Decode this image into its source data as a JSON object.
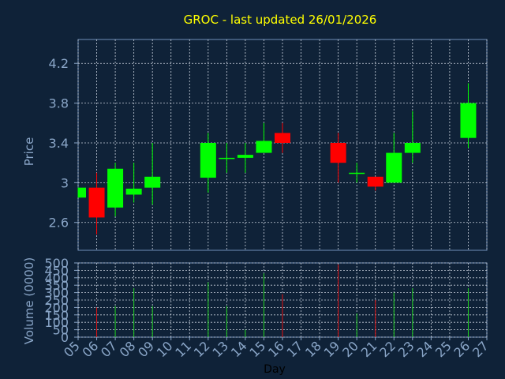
{
  "chart_data": [
    {
      "type": "candlestick",
      "title": "GROC - last updated 26/01/2026",
      "ylabel": "Price",
      "ylim": [
        2.32,
        4.44
      ],
      "yticks": [
        "2.6",
        "3",
        "3.4",
        "3.8",
        "4.2"
      ],
      "ytick_values": [
        2.6,
        3.0,
        3.4,
        3.8,
        4.2
      ],
      "grid": true,
      "candles": [
        {
          "day": "05",
          "open": 2.85,
          "close": 2.95,
          "high": 2.95,
          "low": 2.85
        },
        {
          "day": "06",
          "open": 2.95,
          "close": 2.65,
          "high": 3.1,
          "low": 2.48
        },
        {
          "day": "07",
          "open": 2.75,
          "close": 3.14,
          "high": 3.2,
          "low": 2.66
        },
        {
          "day": "08",
          "open": 2.88,
          "close": 2.94,
          "high": 3.2,
          "low": 2.8
        },
        {
          "day": "09",
          "open": 2.95,
          "close": 3.06,
          "high": 3.4,
          "low": 2.78
        },
        {
          "day": "12",
          "open": 3.05,
          "close": 3.4,
          "high": 3.5,
          "low": 2.9
        },
        {
          "day": "13",
          "open": 3.24,
          "close": 3.25,
          "high": 3.4,
          "low": 3.1
        },
        {
          "day": "14",
          "open": 3.25,
          "close": 3.28,
          "high": 3.4,
          "low": 3.1
        },
        {
          "day": "15",
          "open": 3.3,
          "close": 3.42,
          "high": 3.6,
          "low": 3.3
        },
        {
          "day": "16",
          "open": 3.5,
          "close": 3.4,
          "high": 3.6,
          "low": 3.3
        },
        {
          "day": "19",
          "open": 3.4,
          "close": 3.2,
          "high": 3.5,
          "low": 3.0
        },
        {
          "day": "20",
          "open": 3.09,
          "close": 3.1,
          "high": 3.2,
          "low": 3.0
        },
        {
          "day": "21",
          "open": 3.06,
          "close": 2.96,
          "high": 3.06,
          "low": 2.92
        },
        {
          "day": "22",
          "open": 3.0,
          "close": 3.3,
          "high": 3.5,
          "low": 3.0
        },
        {
          "day": "23",
          "open": 3.3,
          "close": 3.4,
          "high": 3.72,
          "low": 3.2
        },
        {
          "day": "26",
          "open": 3.45,
          "close": 3.8,
          "high": 4.0,
          "low": 3.35
        }
      ]
    },
    {
      "type": "bar",
      "ylabel": "Volume (0000)",
      "xlabel": "Day",
      "ylim": [
        0,
        500
      ],
      "yticks": [
        "0",
        "50",
        "100",
        "150",
        "200",
        "250",
        "300",
        "350",
        "400",
        "450",
        "500"
      ],
      "ytick_values": [
        0,
        50,
        100,
        150,
        200,
        250,
        300,
        350,
        400,
        450,
        500
      ],
      "xticks": [
        "05",
        "06",
        "07",
        "08",
        "09",
        "10",
        "11",
        "12",
        "13",
        "14",
        "15",
        "16",
        "17",
        "18",
        "19",
        "20",
        "21",
        "22",
        "23",
        "24",
        "25",
        "26",
        "27"
      ],
      "grid": true,
      "bars": [
        {
          "day": "06",
          "value": 200,
          "color": "#e01010"
        },
        {
          "day": "07",
          "value": 210,
          "color": "#20d020"
        },
        {
          "day": "08",
          "value": 330,
          "color": "#20d020"
        },
        {
          "day": "09",
          "value": 210,
          "color": "#20d020"
        },
        {
          "day": "12",
          "value": 370,
          "color": "#20d020"
        },
        {
          "day": "13",
          "value": 210,
          "color": "#20d020"
        },
        {
          "day": "14",
          "value": 50,
          "color": "#20d020"
        },
        {
          "day": "15",
          "value": 430,
          "color": "#20d020"
        },
        {
          "day": "16",
          "value": 290,
          "color": "#e01010"
        },
        {
          "day": "19",
          "value": 490,
          "color": "#e01010"
        },
        {
          "day": "20",
          "value": 160,
          "color": "#20d020"
        },
        {
          "day": "21",
          "value": 250,
          "color": "#e01010"
        },
        {
          "day": "22",
          "value": 300,
          "color": "#20d020"
        },
        {
          "day": "23",
          "value": 330,
          "color": "#20d020"
        },
        {
          "day": "26",
          "value": 330,
          "color": "#20d020"
        }
      ]
    }
  ],
  "colors": {
    "background": "#0f2238",
    "up": "#00ff00",
    "down": "#ff0000",
    "title": "#ffff00",
    "axis": "#8aa6c8",
    "grid": "#c8d0dc"
  }
}
